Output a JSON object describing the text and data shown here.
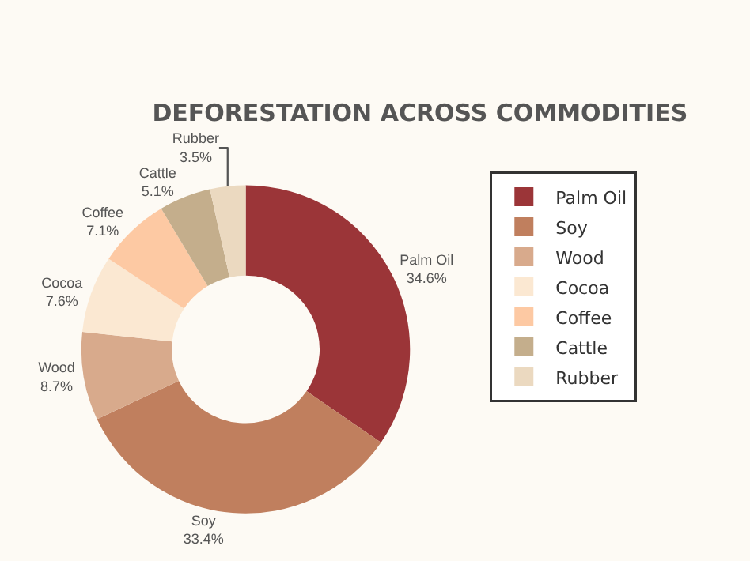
{
  "chart_data": {
    "type": "donut",
    "title": "DEFORESTATION ACROSS COMMODITIES",
    "categories": [
      "Palm Oil",
      "Soy",
      "Wood",
      "Cocoa",
      "Coffee",
      "Cattle",
      "Rubber"
    ],
    "values": [
      34.6,
      33.4,
      8.7,
      7.6,
      7.1,
      5.1,
      3.5
    ],
    "value_labels": [
      "34.6%",
      "33.4%",
      "8.7%",
      "7.6%",
      "7.1%",
      "5.1%",
      "3.5%"
    ],
    "colors": [
      "#9b3538",
      "#c07f5e",
      "#d8aa8c",
      "#fbe8d2",
      "#fdc9a3",
      "#c4ae8c",
      "#ebd9c0"
    ],
    "legend": "right"
  }
}
